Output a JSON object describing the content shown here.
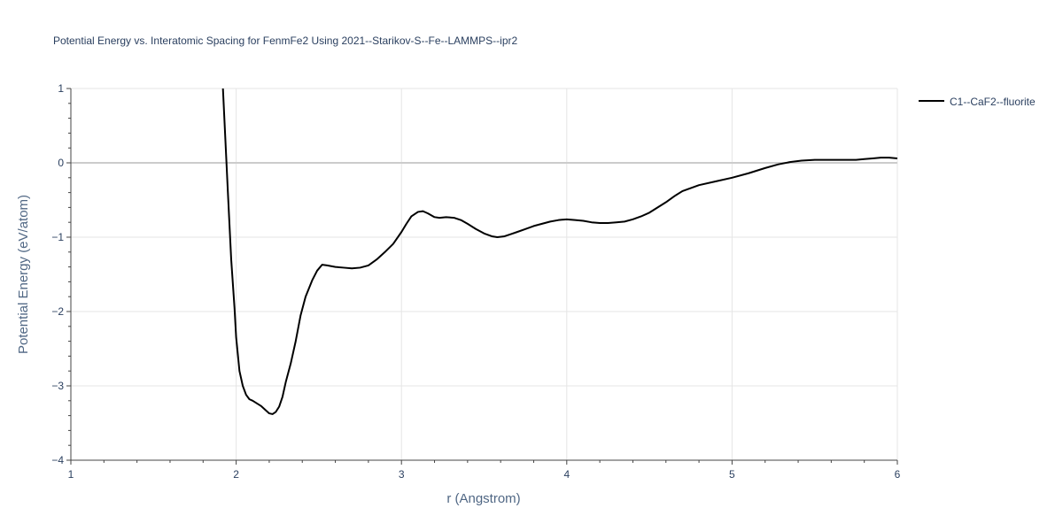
{
  "chart_data": {
    "type": "line",
    "title": "Potential Energy vs. Interatomic Spacing for FenmFe2 Using 2021--Starikov-S--Fe--LAMMPS--ipr2",
    "xlabel": "r (Angstrom)",
    "ylabel": "Potential Energy (eV/atom)",
    "xlim": [
      1,
      6
    ],
    "ylim": [
      -4,
      1
    ],
    "x_ticks": [
      1,
      2,
      3,
      4,
      5,
      6
    ],
    "y_ticks": [
      1,
      0,
      -1,
      -2,
      -3,
      -4
    ],
    "y_tick_labels": [
      "1",
      "0",
      "−1",
      "−2",
      "−3",
      "−4"
    ],
    "grid": true,
    "legend_position": "top-right",
    "series": [
      {
        "name": "C1--CaF2--fluorite",
        "color": "#000000",
        "x": [
          1.92,
          1.95,
          1.97,
          1.99,
          2.0,
          2.02,
          2.04,
          2.06,
          2.08,
          2.1,
          2.15,
          2.18,
          2.2,
          2.22,
          2.24,
          2.26,
          2.28,
          2.3,
          2.33,
          2.36,
          2.39,
          2.42,
          2.46,
          2.49,
          2.52,
          2.55,
          2.6,
          2.65,
          2.7,
          2.75,
          2.8,
          2.85,
          2.9,
          2.95,
          3.0,
          3.03,
          3.06,
          3.1,
          3.13,
          3.16,
          3.2,
          3.23,
          3.27,
          3.32,
          3.36,
          3.4,
          3.45,
          3.5,
          3.55,
          3.58,
          3.62,
          3.66,
          3.7,
          3.75,
          3.8,
          3.85,
          3.9,
          3.95,
          4.0,
          4.05,
          4.1,
          4.15,
          4.2,
          4.25,
          4.3,
          4.35,
          4.4,
          4.45,
          4.5,
          4.55,
          4.6,
          4.65,
          4.7,
          4.75,
          4.8,
          4.9,
          5.0,
          5.1,
          5.2,
          5.28,
          5.35,
          5.42,
          5.5,
          5.6,
          5.7,
          5.75,
          5.8,
          5.85,
          5.9,
          5.95,
          6.0
        ],
        "y": [
          1.0,
          -0.4,
          -1.3,
          -1.95,
          -2.35,
          -2.8,
          -3.0,
          -3.12,
          -3.18,
          -3.2,
          -3.27,
          -3.33,
          -3.37,
          -3.38,
          -3.35,
          -3.28,
          -3.15,
          -2.95,
          -2.7,
          -2.4,
          -2.05,
          -1.8,
          -1.58,
          -1.45,
          -1.37,
          -1.38,
          -1.4,
          -1.41,
          -1.42,
          -1.41,
          -1.38,
          -1.3,
          -1.2,
          -1.09,
          -0.93,
          -0.82,
          -0.72,
          -0.66,
          -0.65,
          -0.68,
          -0.73,
          -0.74,
          -0.73,
          -0.74,
          -0.77,
          -0.82,
          -0.89,
          -0.95,
          -0.99,
          -1.0,
          -0.99,
          -0.96,
          -0.93,
          -0.89,
          -0.85,
          -0.82,
          -0.79,
          -0.77,
          -0.76,
          -0.77,
          -0.78,
          -0.8,
          -0.81,
          -0.81,
          -0.8,
          -0.79,
          -0.76,
          -0.72,
          -0.67,
          -0.6,
          -0.53,
          -0.45,
          -0.38,
          -0.34,
          -0.3,
          -0.25,
          -0.2,
          -0.14,
          -0.07,
          -0.02,
          0.01,
          0.03,
          0.04,
          0.04,
          0.04,
          0.04,
          0.05,
          0.06,
          0.07,
          0.07,
          0.06
        ]
      }
    ]
  },
  "colors": {
    "grid": "#e5e5e5",
    "zero_line": "#cccccc",
    "axis_line": "#444444",
    "text": "#2a3f5f"
  }
}
